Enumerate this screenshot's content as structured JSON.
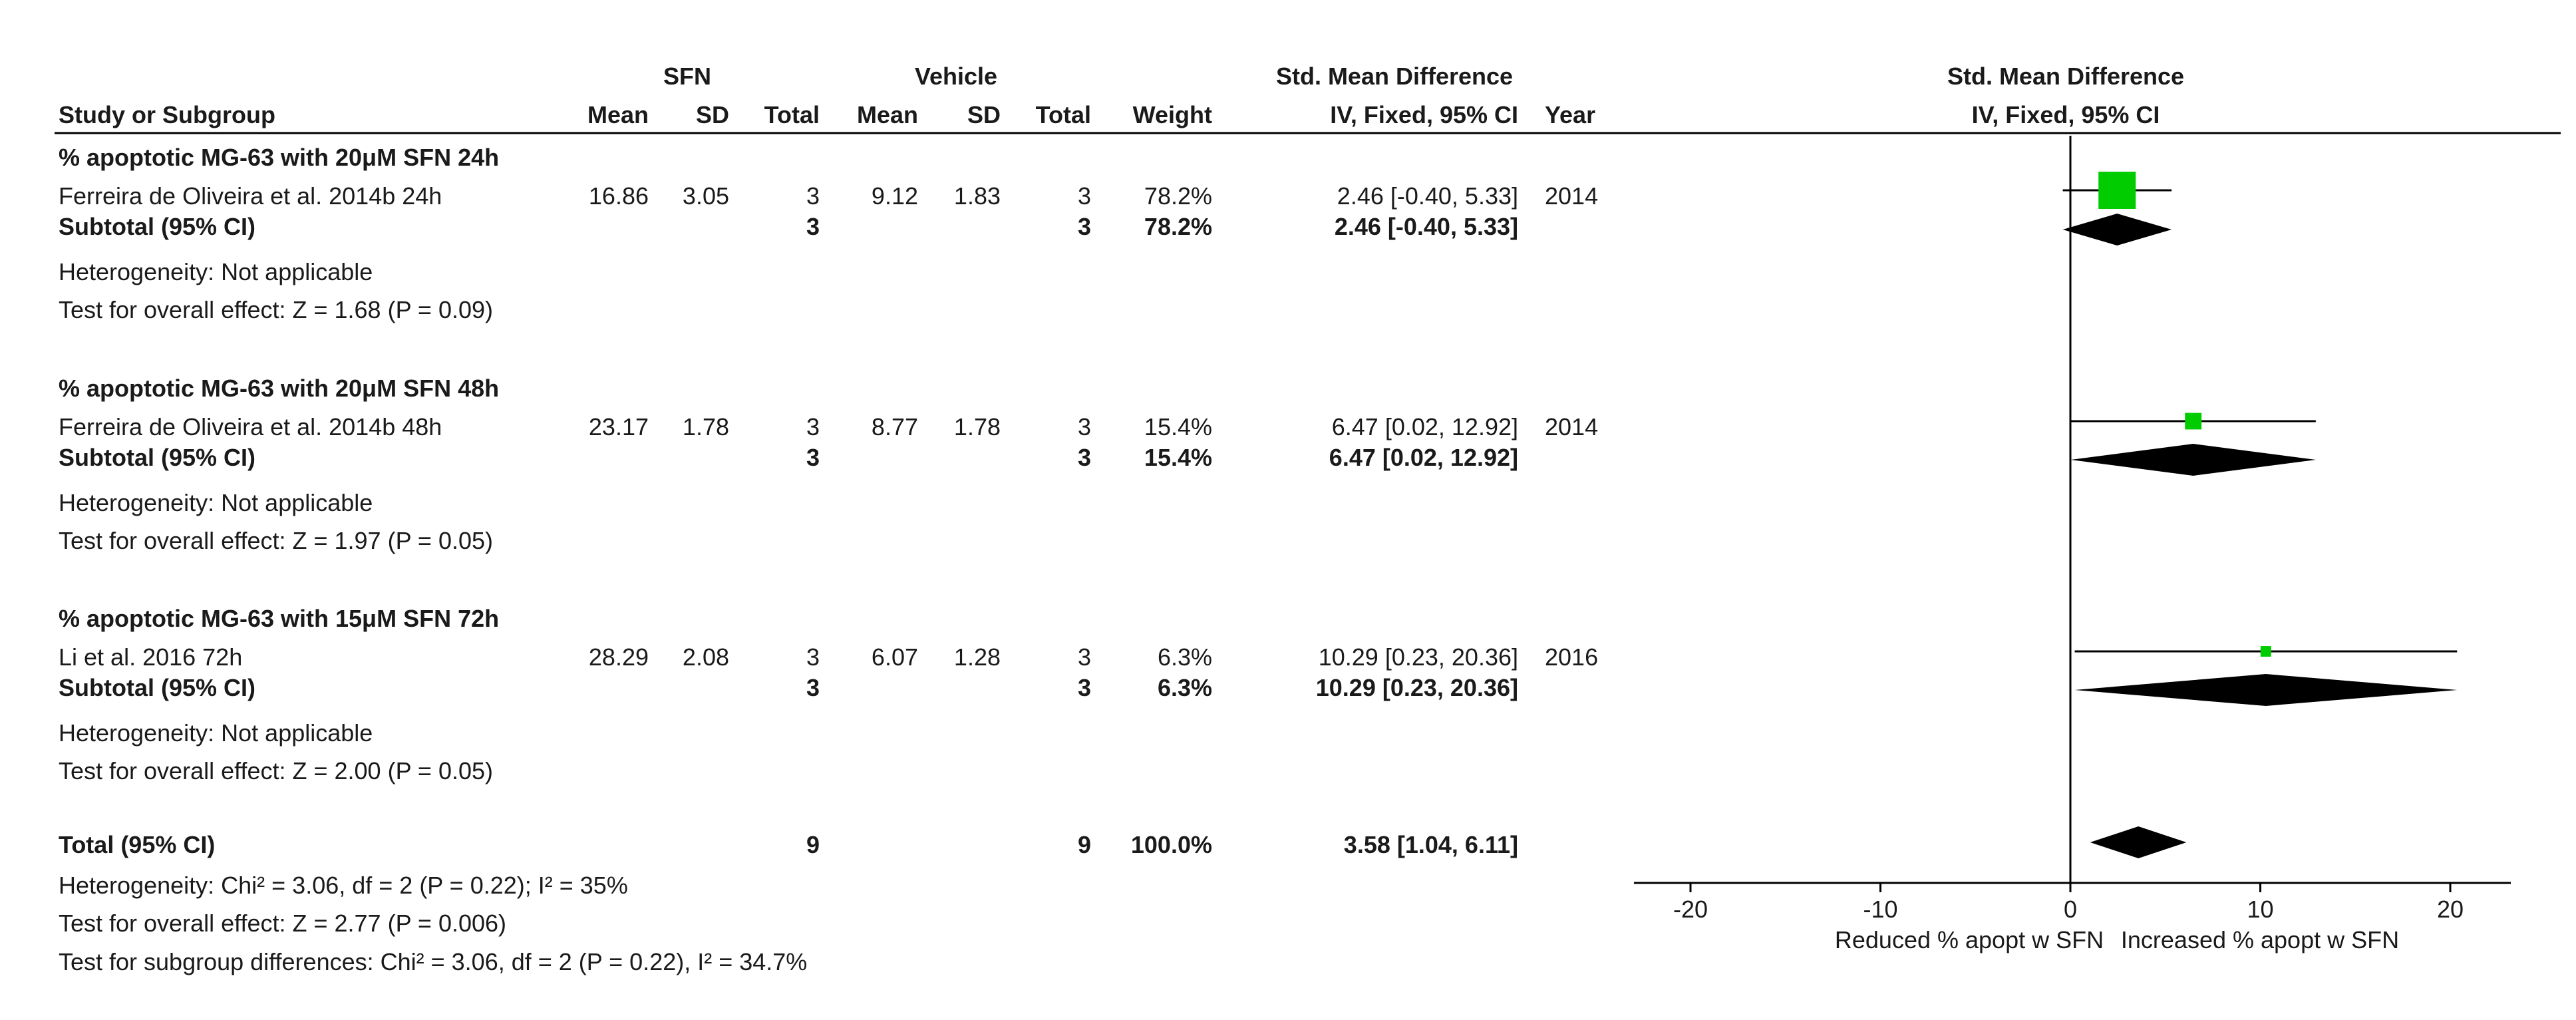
{
  "header": {
    "group1": "SFN",
    "group2": "Vehicle",
    "effect_title": "Std. Mean Difference",
    "study_col": "Study or Subgroup",
    "mean1": "Mean",
    "sd1": "SD",
    "total1": "Total",
    "mean2": "Mean",
    "sd2": "SD",
    "total2": "Total",
    "weight": "Weight",
    "method": "IV, Fixed, 95% CI",
    "year": "Year",
    "plot_title": "Std. Mean Difference",
    "plot_method": "IV, Fixed, 95% CI"
  },
  "subgroups": [
    {
      "title": "% apoptotic MG-63 with 20μM SFN 24h",
      "study": {
        "name": "Ferreira de Oliveira et al. 2014b 24h",
        "mean1": "16.86",
        "sd1": "3.05",
        "n1": "3",
        "mean2": "9.12",
        "sd2": "1.83",
        "n2": "3",
        "weight": "78.2%",
        "ci": "2.46 [-0.40, 5.33]",
        "year": "2014"
      },
      "subtotal": {
        "label": "Subtotal (95% CI)",
        "n1": "3",
        "n2": "3",
        "weight": "78.2%",
        "ci": "2.46 [-0.40, 5.33]"
      },
      "heterogeneity": "Heterogeneity: Not applicable",
      "overall": "Test for overall effect: Z = 1.68 (P = 0.09)"
    },
    {
      "title": "% apoptotic MG-63 with 20μM SFN 48h",
      "study": {
        "name": "Ferreira de Oliveira et al. 2014b 48h",
        "mean1": "23.17",
        "sd1": "1.78",
        "n1": "3",
        "mean2": "8.77",
        "sd2": "1.78",
        "n2": "3",
        "weight": "15.4%",
        "ci": "6.47 [0.02, 12.92]",
        "year": "2014"
      },
      "subtotal": {
        "label": "Subtotal (95% CI)",
        "n1": "3",
        "n2": "3",
        "weight": "15.4%",
        "ci": "6.47 [0.02, 12.92]"
      },
      "heterogeneity": "Heterogeneity: Not applicable",
      "overall": "Test for overall effect: Z = 1.97 (P = 0.05)"
    },
    {
      "title": "% apoptotic MG-63 with 15μM SFN 72h",
      "study": {
        "name": "Li et al. 2016 72h",
        "mean1": "28.29",
        "sd1": "2.08",
        "n1": "3",
        "mean2": "6.07",
        "sd2": "1.28",
        "n2": "3",
        "weight": "6.3%",
        "ci": "10.29 [0.23, 20.36]",
        "year": "2016"
      },
      "subtotal": {
        "label": "Subtotal (95% CI)",
        "n1": "3",
        "n2": "3",
        "weight": "6.3%",
        "ci": "10.29 [0.23, 20.36]"
      },
      "heterogeneity": "Heterogeneity: Not applicable",
      "overall": "Test for overall effect: Z = 2.00 (P = 0.05)"
    }
  ],
  "total": {
    "label": "Total (95% CI)",
    "n1": "9",
    "n2": "9",
    "weight": "100.0%",
    "ci": "3.58 [1.04, 6.11]",
    "heterogeneity": "Heterogeneity: Chi² = 3.06, df = 2 (P = 0.22); I² = 35%",
    "overall": "Test for overall effect: Z = 2.77 (P = 0.006)",
    "subgroup_diff": "Test for subgroup differences: Chi² = 3.06, df = 2 (P = 0.22), I² = 34.7%"
  },
  "axis": {
    "ticks": [
      "-20",
      "-10",
      "0",
      "10",
      "20"
    ],
    "left_label": "Reduced % apopt w SFN",
    "right_label": "Increased % apopt w SFN"
  },
  "colors": {
    "study_marker": "#00cc00",
    "diamond": "#000000",
    "line": "#000000"
  },
  "chart_data": {
    "type": "forest",
    "xlim": [
      -20,
      20
    ],
    "ticks": [
      -20,
      -10,
      0,
      10,
      20
    ],
    "studies": [
      {
        "name": "Ferreira de Oliveira et al. 2014b 24h",
        "est": 2.46,
        "lo": -0.4,
        "hi": 5.33,
        "weight": 78.2
      },
      {
        "name": "Ferreira de Oliveira et al. 2014b 48h",
        "est": 6.47,
        "lo": 0.02,
        "hi": 12.92,
        "weight": 15.4
      },
      {
        "name": "Li et al. 2016 72h",
        "est": 10.29,
        "lo": 0.23,
        "hi": 20.36,
        "weight": 6.3
      }
    ],
    "subtotals": [
      {
        "label": "Subtotal (95% CI)",
        "est": 2.46,
        "lo": -0.4,
        "hi": 5.33
      },
      {
        "label": "Subtotal (95% CI)",
        "est": 6.47,
        "lo": 0.02,
        "hi": 12.92
      },
      {
        "label": "Subtotal (95% CI)",
        "est": 10.29,
        "lo": 0.23,
        "hi": 20.36
      }
    ],
    "total": {
      "label": "Total (95% CI)",
      "est": 3.58,
      "lo": 1.04,
      "hi": 6.11
    }
  }
}
